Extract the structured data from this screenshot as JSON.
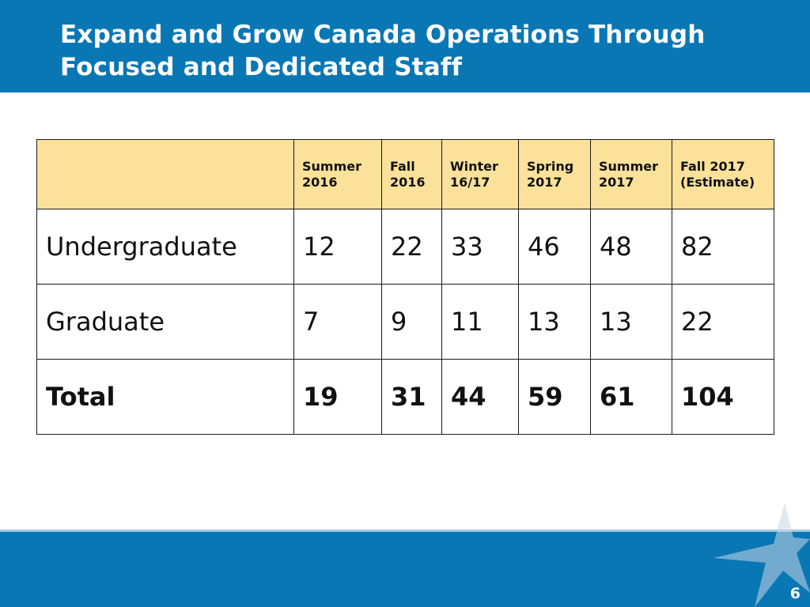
{
  "slide": {
    "title": "Expand and Grow Canada Operations Through Focused and Dedicated Staff",
    "page_number": "6"
  },
  "table": {
    "header_blank": "",
    "columns": [
      [
        "Summer",
        "2016"
      ],
      [
        "Fall",
        "2016"
      ],
      [
        "Winter",
        "16/17"
      ],
      [
        "Spring",
        "2017"
      ],
      [
        "Summer",
        "2017"
      ],
      [
        "Fall 2017",
        "(Estimate)"
      ]
    ],
    "rows": [
      {
        "label": "Undergraduate",
        "values": [
          "12",
          "22",
          "33",
          "46",
          "48",
          "82"
        ]
      },
      {
        "label": "Graduate",
        "values": [
          "7",
          "9",
          "11",
          "13",
          "13",
          "22"
        ]
      },
      {
        "label": "Total",
        "values": [
          "19",
          "31",
          "44",
          "59",
          "61",
          "104"
        ]
      }
    ]
  },
  "colors": {
    "brand_blue": "#0a77b5",
    "header_fill": "#fce19a",
    "text": "#111111"
  },
  "icons": [
    "star-watermark-icon"
  ]
}
